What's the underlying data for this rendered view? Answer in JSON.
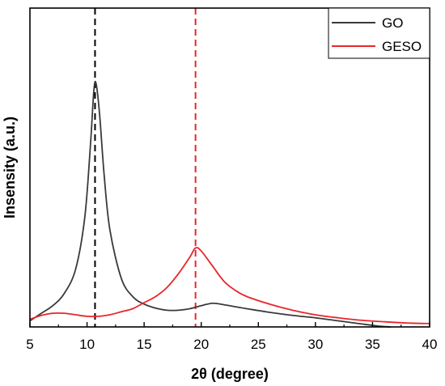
{
  "chart_data": {
    "type": "line",
    "title": "",
    "xlabel": "2θ (degree)",
    "ylabel": "Insensity (a.u.)",
    "xlim": [
      5,
      40
    ],
    "ylim": [
      0,
      1.05
    ],
    "x_ticks": [
      "5",
      "10",
      "15",
      "20",
      "25",
      "30",
      "35",
      "40"
    ],
    "y_ticks_shown": false,
    "grid": false,
    "legend_position": "top-right",
    "series": [
      {
        "name": "GO",
        "color": "#3a3a3a",
        "points": [
          [
            5,
            0.02
          ],
          [
            6,
            0.045
          ],
          [
            7,
            0.07
          ],
          [
            8,
            0.11
          ],
          [
            9,
            0.19
          ],
          [
            9.8,
            0.36
          ],
          [
            10.3,
            0.6
          ],
          [
            10.6,
            0.78
          ],
          [
            10.8,
            0.8
          ],
          [
            11.1,
            0.7
          ],
          [
            11.5,
            0.5
          ],
          [
            12,
            0.32
          ],
          [
            13,
            0.16
          ],
          [
            14,
            0.1
          ],
          [
            15,
            0.075
          ],
          [
            16,
            0.062
          ],
          [
            17,
            0.055
          ],
          [
            18,
            0.055
          ],
          [
            19,
            0.06
          ],
          [
            20,
            0.07
          ],
          [
            21,
            0.078
          ],
          [
            22,
            0.073
          ],
          [
            24,
            0.06
          ],
          [
            26,
            0.048
          ],
          [
            28,
            0.038
          ],
          [
            30,
            0.03
          ],
          [
            32,
            0.02
          ],
          [
            34,
            0.01
          ],
          [
            35.5,
            0.003
          ],
          [
            36.6,
            0.0
          ]
        ],
        "markers": false
      },
      {
        "name": "GESO",
        "color": "#e8262a",
        "points": [
          [
            5,
            0.025
          ],
          [
            6,
            0.038
          ],
          [
            7,
            0.045
          ],
          [
            8,
            0.045
          ],
          [
            9,
            0.04
          ],
          [
            10,
            0.035
          ],
          [
            11,
            0.035
          ],
          [
            12,
            0.04
          ],
          [
            13,
            0.05
          ],
          [
            14,
            0.06
          ],
          [
            15,
            0.08
          ],
          [
            16,
            0.1
          ],
          [
            17,
            0.13
          ],
          [
            18,
            0.175
          ],
          [
            19,
            0.23
          ],
          [
            19.5,
            0.26
          ],
          [
            20,
            0.25
          ],
          [
            21,
            0.2
          ],
          [
            22,
            0.15
          ],
          [
            23,
            0.12
          ],
          [
            24,
            0.1
          ],
          [
            26,
            0.075
          ],
          [
            28,
            0.055
          ],
          [
            30,
            0.04
          ],
          [
            32,
            0.03
          ],
          [
            34,
            0.022
          ],
          [
            36,
            0.017
          ],
          [
            38,
            0.013
          ],
          [
            40,
            0.011
          ]
        ],
        "markers": false
      }
    ],
    "reference_lines": [
      {
        "x": 10.7,
        "color": "#000000",
        "style": "dashed"
      },
      {
        "x": 19.5,
        "color": "#e8262a",
        "style": "dashed"
      }
    ]
  }
}
